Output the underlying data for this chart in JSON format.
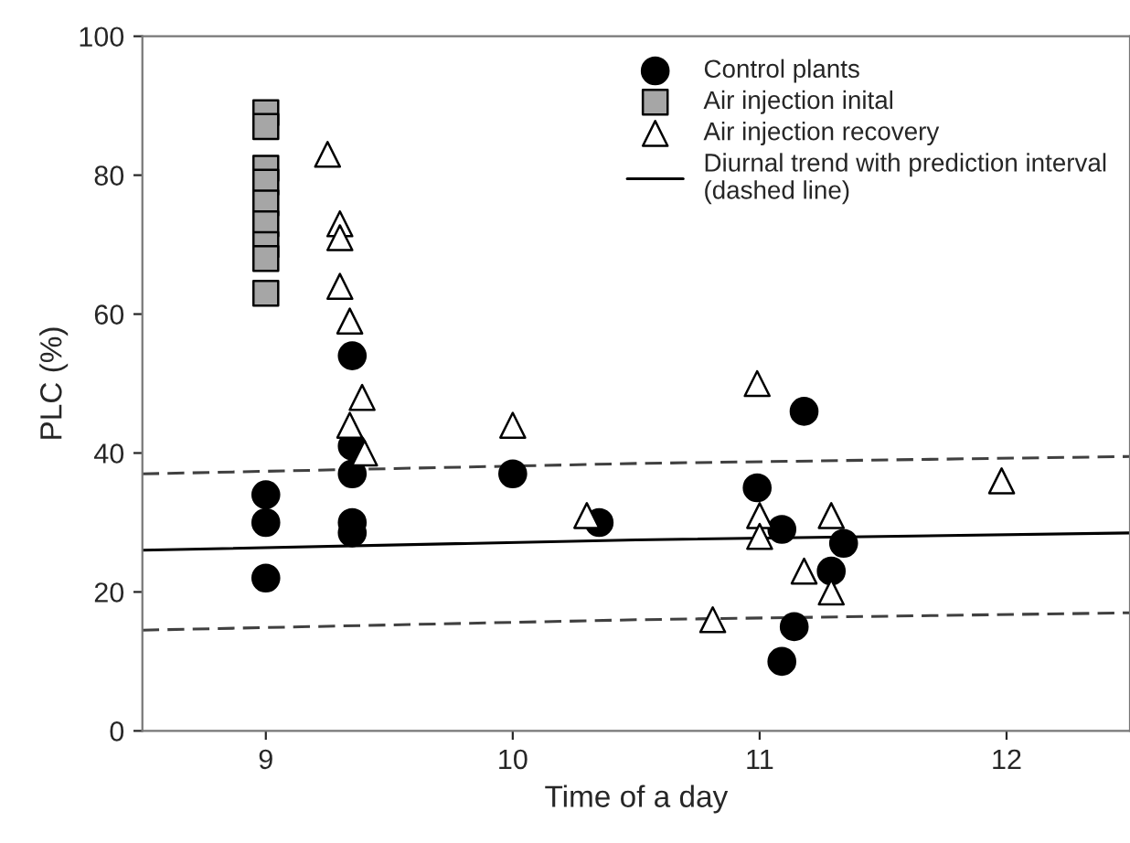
{
  "chart_data": {
    "type": "scatter",
    "xlabel": "Time of a day",
    "ylabel": "PLC (%)",
    "xlim": [
      8.5,
      12.5
    ],
    "ylim": [
      0,
      100
    ],
    "xticks": [
      9,
      10,
      11,
      12
    ],
    "yticks": [
      0,
      20,
      40,
      60,
      80,
      100
    ],
    "grid": false,
    "legend": "top right",
    "series": [
      {
        "name": "Control plants",
        "marker": "circle",
        "color": "#000000",
        "x": [
          9,
          9,
          9,
          9.35,
          9.35,
          9.35,
          9.35,
          9.35,
          10,
          10.35,
          11.18,
          10.99,
          11.09,
          11.34,
          11.29,
          11.14,
          11.09
        ],
        "values": [
          34,
          30,
          22,
          54,
          41,
          37,
          30,
          28.5,
          37,
          30,
          46,
          35,
          29,
          27,
          23,
          15,
          10
        ]
      },
      {
        "name": "Air injection inital",
        "marker": "square",
        "color": "#a6a6a6",
        "x": [
          9,
          9,
          9,
          9,
          9,
          9,
          9,
          9,
          9
        ],
        "values": [
          89,
          87,
          81,
          79,
          76,
          73,
          70,
          68,
          63
        ]
      },
      {
        "name": "Air injection recovery",
        "marker": "triangle",
        "color": "#ffffff",
        "x": [
          9.25,
          9.3,
          9.3,
          9.3,
          9.34,
          9.39,
          9.34,
          9.4,
          10,
          10.3,
          10.99,
          11,
          11,
          11.29,
          11.18,
          11.29,
          10.81,
          11.98
        ],
        "values": [
          83,
          73,
          71,
          64,
          59,
          48,
          44,
          40,
          44,
          31,
          50,
          31,
          28,
          31,
          23,
          20,
          16,
          36
        ]
      },
      {
        "name": "Diurnal trend with prediction interval\n(dashed line)",
        "type": "line",
        "marker": "none",
        "line_style": "solid",
        "color": "#000000",
        "x": [
          8.5,
          10.5,
          12.5
        ],
        "values": [
          26,
          27.5,
          28.5
        ]
      },
      {
        "type": "line",
        "marker": "none",
        "line_style": "dashed",
        "color": "#404040",
        "x": [
          8.5,
          10.5,
          12.5
        ],
        "values": [
          37,
          38.5,
          39.5
        ]
      },
      {
        "type": "line",
        "marker": "none",
        "line_style": "dashed",
        "color": "#404040",
        "x": [
          8.5,
          10.5,
          12.5
        ],
        "values": [
          14.5,
          16,
          17
        ]
      }
    ]
  }
}
